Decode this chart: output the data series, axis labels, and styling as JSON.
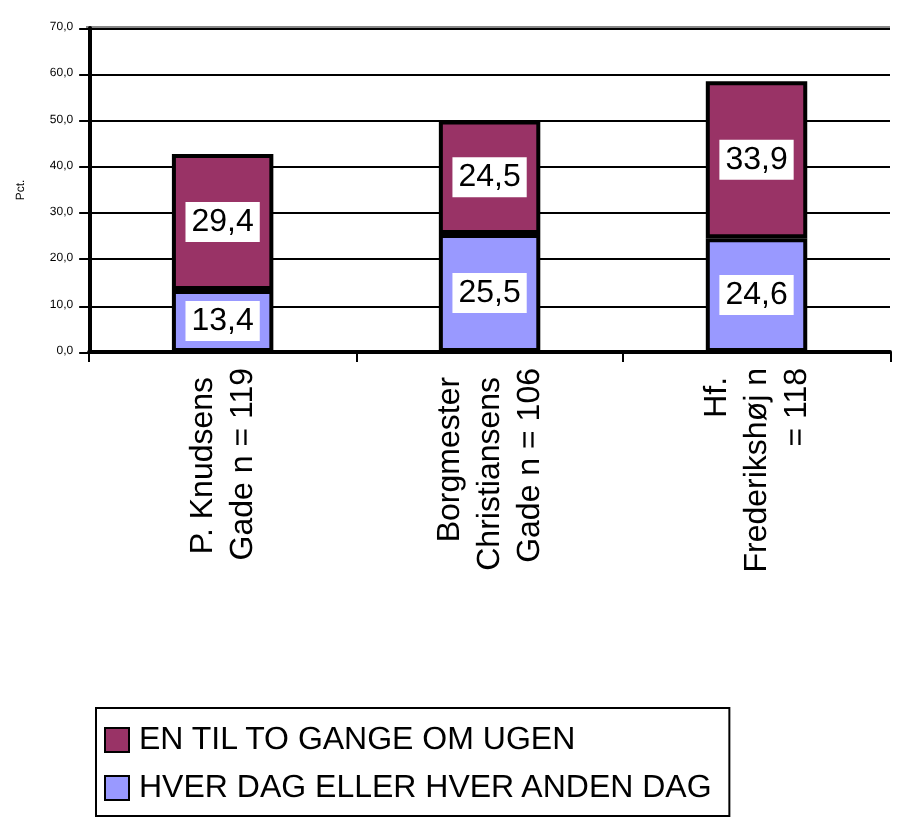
{
  "chart_data": {
    "type": "bar",
    "stacked": true,
    "ylabel": "Pct.",
    "categories": [
      "P. Knudsens Gade n = 119",
      "Borgmester Christiansens Gade n = 106",
      "Hf. Frederikshøj n = 118"
    ],
    "series": [
      {
        "name": "HVER DAG ELLER HVER ANDEN DAG",
        "color": "#9999ff",
        "values": [
          13.4,
          25.5,
          24.6
        ],
        "value_labels": [
          "13,4",
          "25,5",
          "24,6"
        ]
      },
      {
        "name": "EN TIL TO GANGE OM UGEN",
        "color": "#993366",
        "values": [
          29.4,
          24.5,
          33.9
        ],
        "value_labels": [
          "29,4",
          "24,5",
          "33,9"
        ]
      }
    ],
    "ylim": [
      0,
      70
    ],
    "yticks": [
      {
        "value": 0,
        "label": "0,0"
      },
      {
        "value": 10,
        "label": "10,0"
      },
      {
        "value": 20,
        "label": "20,0"
      },
      {
        "value": 30,
        "label": "30,0"
      },
      {
        "value": 40,
        "label": "40,0"
      },
      {
        "value": 50,
        "label": "50,0"
      },
      {
        "value": 60,
        "label": "60,0"
      },
      {
        "value": 70,
        "label": "70,0"
      }
    ],
    "grid": "y",
    "legend": "bottom"
  }
}
